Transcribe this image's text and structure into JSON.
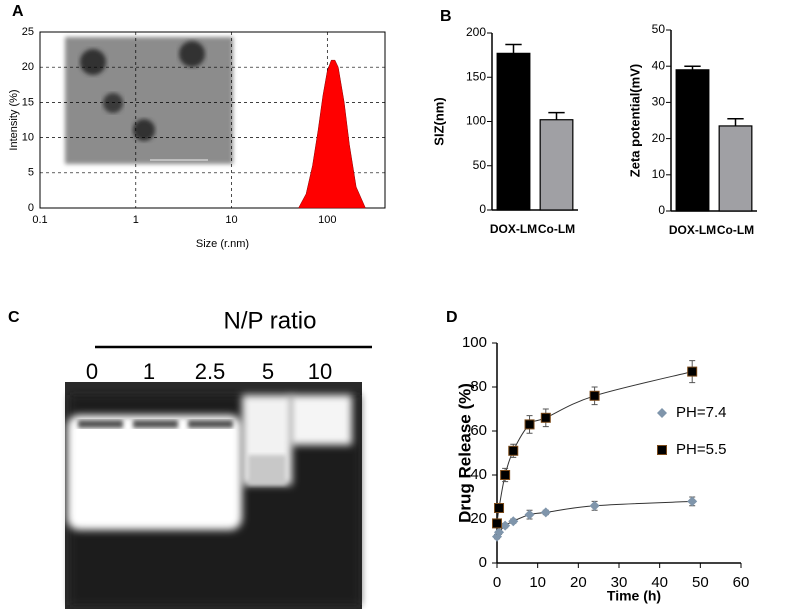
{
  "panels": [
    "A",
    "B",
    "C",
    "D"
  ],
  "chart_data": [
    {
      "type": "area",
      "xlabel": "Size (r.nm)",
      "ylabel": "Intensity (%)",
      "xscale": "log",
      "color": "#ff0000",
      "x": [
        50,
        60,
        70,
        80,
        90,
        100,
        110,
        120,
        130,
        150,
        170,
        200,
        250
      ],
      "values": [
        0,
        2,
        6,
        11,
        16,
        19.5,
        21,
        21,
        20,
        15,
        9,
        3,
        0
      ],
      "xlim": [
        0.1,
        400
      ],
      "xticks": [
        0.1,
        1,
        10,
        100
      ],
      "ylim": [
        0,
        25
      ],
      "yticks": [
        0,
        5,
        10,
        15,
        20,
        25
      ],
      "grid": true
    },
    {
      "type": "bar",
      "ylabel": "SIZ(nm)",
      "categories": [
        "DOX-LM",
        "Co-LM"
      ],
      "values": [
        177,
        102
      ],
      "errors": [
        10,
        8
      ],
      "colors": [
        "#000000",
        "#a0a0a4"
      ],
      "ylim": [
        0,
        200
      ],
      "yticks": [
        0,
        50,
        100,
        150,
        200
      ]
    },
    {
      "type": "bar",
      "ylabel": "Zeta potential(mV)",
      "categories": [
        "DOX-LM",
        "Co-LM"
      ],
      "values": [
        39,
        23.5
      ],
      "errors": [
        1,
        2
      ],
      "colors": [
        "#000000",
        "#a0a0a4"
      ],
      "ylim": [
        0,
        50
      ],
      "yticks": [
        0,
        10,
        20,
        30,
        40,
        50
      ]
    },
    {
      "type": "scatter",
      "xlabel": "Time (h)",
      "ylabel": "Drug  Release (%)",
      "x": [
        0,
        0.5,
        2,
        4,
        8,
        12,
        24,
        48
      ],
      "series": [
        {
          "name": "PH=7.4",
          "color": "#7f95ab",
          "marker": "diamond",
          "values": [
            12,
            14,
            17,
            19,
            22,
            23,
            26,
            28
          ],
          "errors": [
            1,
            1,
            1,
            1,
            2,
            1,
            2,
            2
          ]
        },
        {
          "name": "PH=5.5",
          "color": "#000000",
          "marker": "square",
          "values": [
            18,
            25,
            40,
            51,
            63,
            66,
            76,
            87
          ],
          "errors": [
            1,
            1,
            3,
            3,
            4,
            4,
            4,
            5
          ]
        }
      ],
      "xlim": [
        0,
        60
      ],
      "xticks": [
        0,
        10,
        20,
        30,
        40,
        50,
        60
      ],
      "ylim": [
        0,
        100
      ],
      "yticks": [
        0,
        20,
        40,
        60,
        80,
        100
      ]
    }
  ],
  "gel": {
    "title": "N/P ratio",
    "lanes": [
      "0",
      "1",
      "2.5",
      "5",
      "10"
    ]
  }
}
